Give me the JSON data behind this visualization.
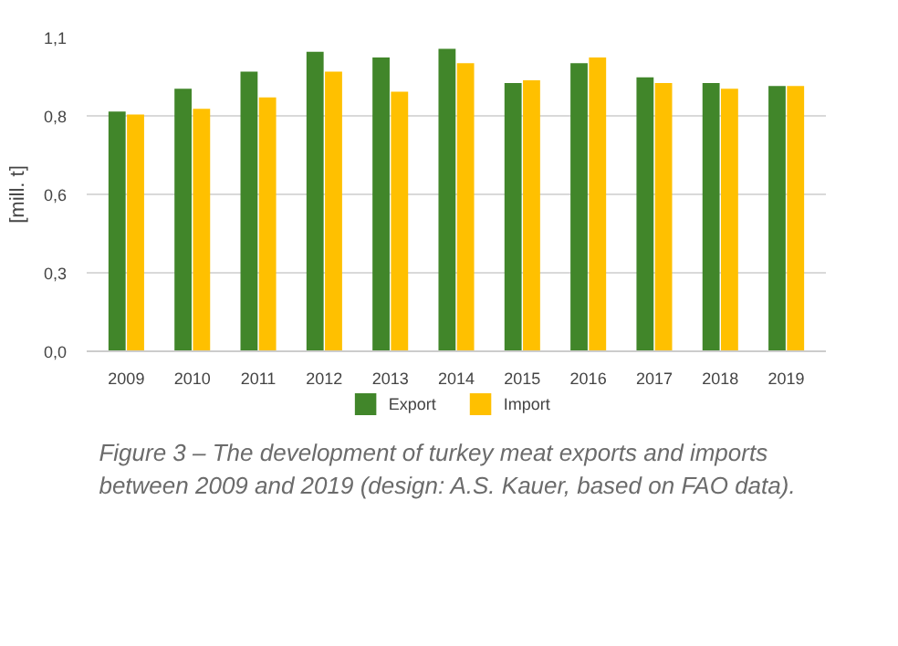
{
  "chart_data": {
    "type": "bar",
    "ylabel": "[mill. t]",
    "categories": [
      "2009",
      "2010",
      "2011",
      "2012",
      "2013",
      "2014",
      "2015",
      "2016",
      "2017",
      "2018",
      "2019"
    ],
    "series": [
      {
        "name": "Export",
        "color": "#41862a",
        "values": [
          0.84,
          0.92,
          0.98,
          1.05,
          1.03,
          1.06,
          0.94,
          1.01,
          0.96,
          0.94,
          0.93
        ]
      },
      {
        "name": "Import",
        "color": "#ffc000",
        "values": [
          0.83,
          0.85,
          0.89,
          0.98,
          0.91,
          1.01,
          0.95,
          1.03,
          0.94,
          0.92,
          0.93
        ]
      }
    ],
    "ylim": [
      0,
      1.1
    ],
    "yticks": [
      {
        "value": 0,
        "label": "0,0"
      },
      {
        "value": 0.275,
        "label": "0,3"
      },
      {
        "value": 0.55,
        "label": "0,6"
      },
      {
        "value": 0.825,
        "label": "0,8"
      },
      {
        "value": 1.1,
        "label": "1,1"
      }
    ],
    "grid": "y",
    "legend": "bottom",
    "annotations": [
      "Figure 3 – The development of turkey meat exports and imports between 2009 and 2019 (design: A.S. Kauer, based on FAO data)."
    ]
  }
}
